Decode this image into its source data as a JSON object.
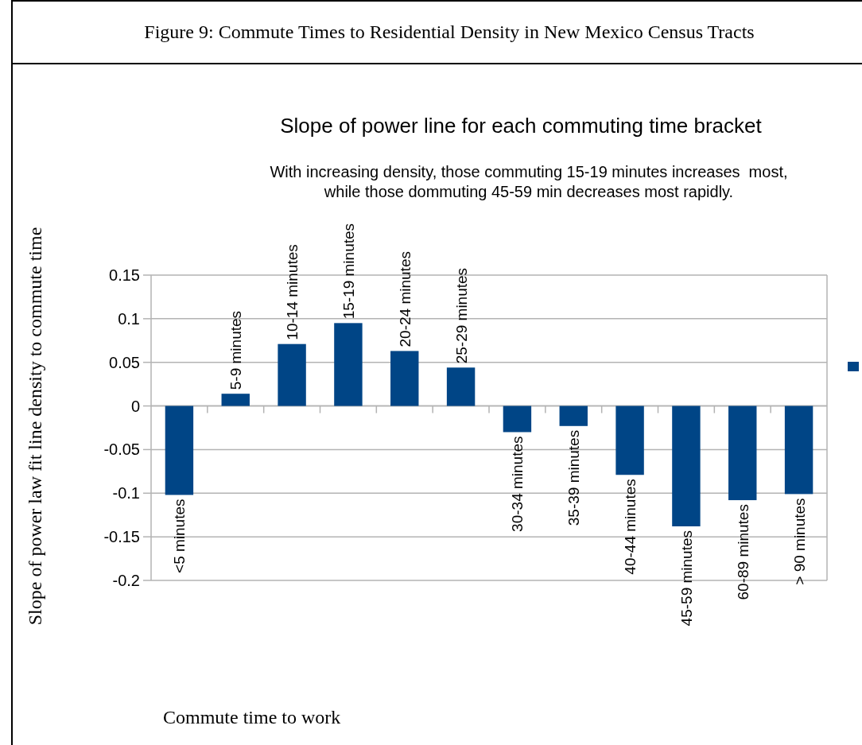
{
  "chart_data": {
    "type": "bar",
    "title": "Slope of power line for each commuting time bracket",
    "subtitle": "With increasing density, those commuting 15-19 minutes increases  most,\nwhile those dommuting 45-59 min decreases most rapidly.",
    "annotations": [
      "Figure 9: Commute Times to Residential Density in New Mexico Census Tracts",
      "Commute time to work"
    ],
    "ylabel": "Slope of power law fit line density to commute time",
    "categories": [
      "<5 minutes",
      "5-9 minutes",
      "10-14 minutes",
      "15-19 minutes",
      "20-24 minutes",
      "25-29 minutes",
      "30-34 minutes",
      "35-39 minutes",
      "40-44 minutes",
      "45-59 minutes",
      "60-89 minutes",
      "> 90 minutes"
    ],
    "series": [
      {
        "color": "#004586",
        "values": [
          -0.102,
          0.014,
          0.071,
          0.095,
          0.063,
          0.044,
          -0.03,
          -0.023,
          -0.079,
          -0.138,
          -0.108,
          -0.101
        ]
      }
    ],
    "ylim": [
      -0.2,
      0.15
    ],
    "yticks": [
      {
        "value": -0.2,
        "label": "-0.2"
      },
      {
        "value": -0.15,
        "label": "-0.15"
      },
      {
        "value": -0.1,
        "label": "-0.1"
      },
      {
        "value": -0.05,
        "label": "-0.05"
      },
      0,
      0.05,
      0.1,
      0.15
    ],
    "grid": "y"
  }
}
